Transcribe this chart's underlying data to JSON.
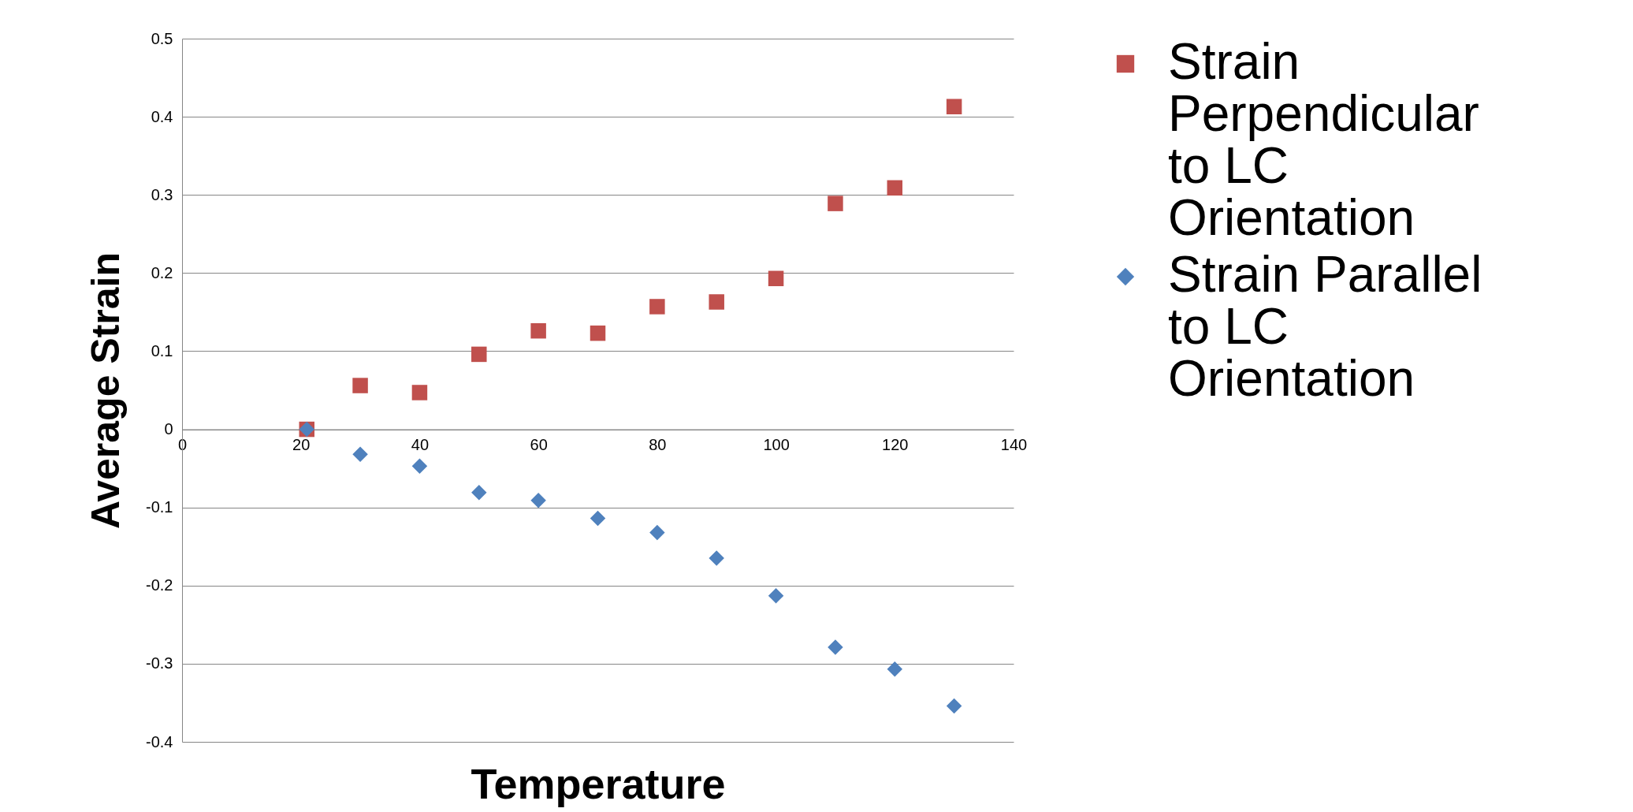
{
  "chart_data": {
    "type": "scatter",
    "xlabel": "Temperature",
    "ylabel": "Average Strain",
    "xlim": [
      0,
      140
    ],
    "xticks": [
      0,
      20,
      40,
      60,
      80,
      100,
      120,
      140
    ],
    "ylim": [
      -0.4,
      0.5
    ],
    "yticks": [
      -0.4,
      -0.3,
      -0.2,
      -0.1,
      0,
      0.1,
      0.2,
      0.3,
      0.4,
      0.5
    ],
    "grid": "y",
    "legend": "right",
    "x": [
      21,
      30,
      40,
      50,
      60,
      70,
      80,
      90,
      100,
      110,
      120,
      130
    ],
    "series": [
      {
        "name": "Strain Perpendicular to LC Orientation",
        "color": "#c0504d",
        "marker": "square",
        "values": [
          0,
          0.056,
          0.047,
          0.096,
          0.126,
          0.123,
          0.157,
          0.163,
          0.193,
          0.289,
          0.309,
          0.413
        ]
      },
      {
        "name": "Strain Parallel to LC Orientation",
        "color": "#4f81bd",
        "marker": "diamond",
        "values": [
          0,
          -0.032,
          -0.047,
          -0.081,
          -0.091,
          -0.114,
          -0.132,
          -0.165,
          -0.213,
          -0.279,
          -0.307,
          -0.354
        ]
      }
    ]
  }
}
